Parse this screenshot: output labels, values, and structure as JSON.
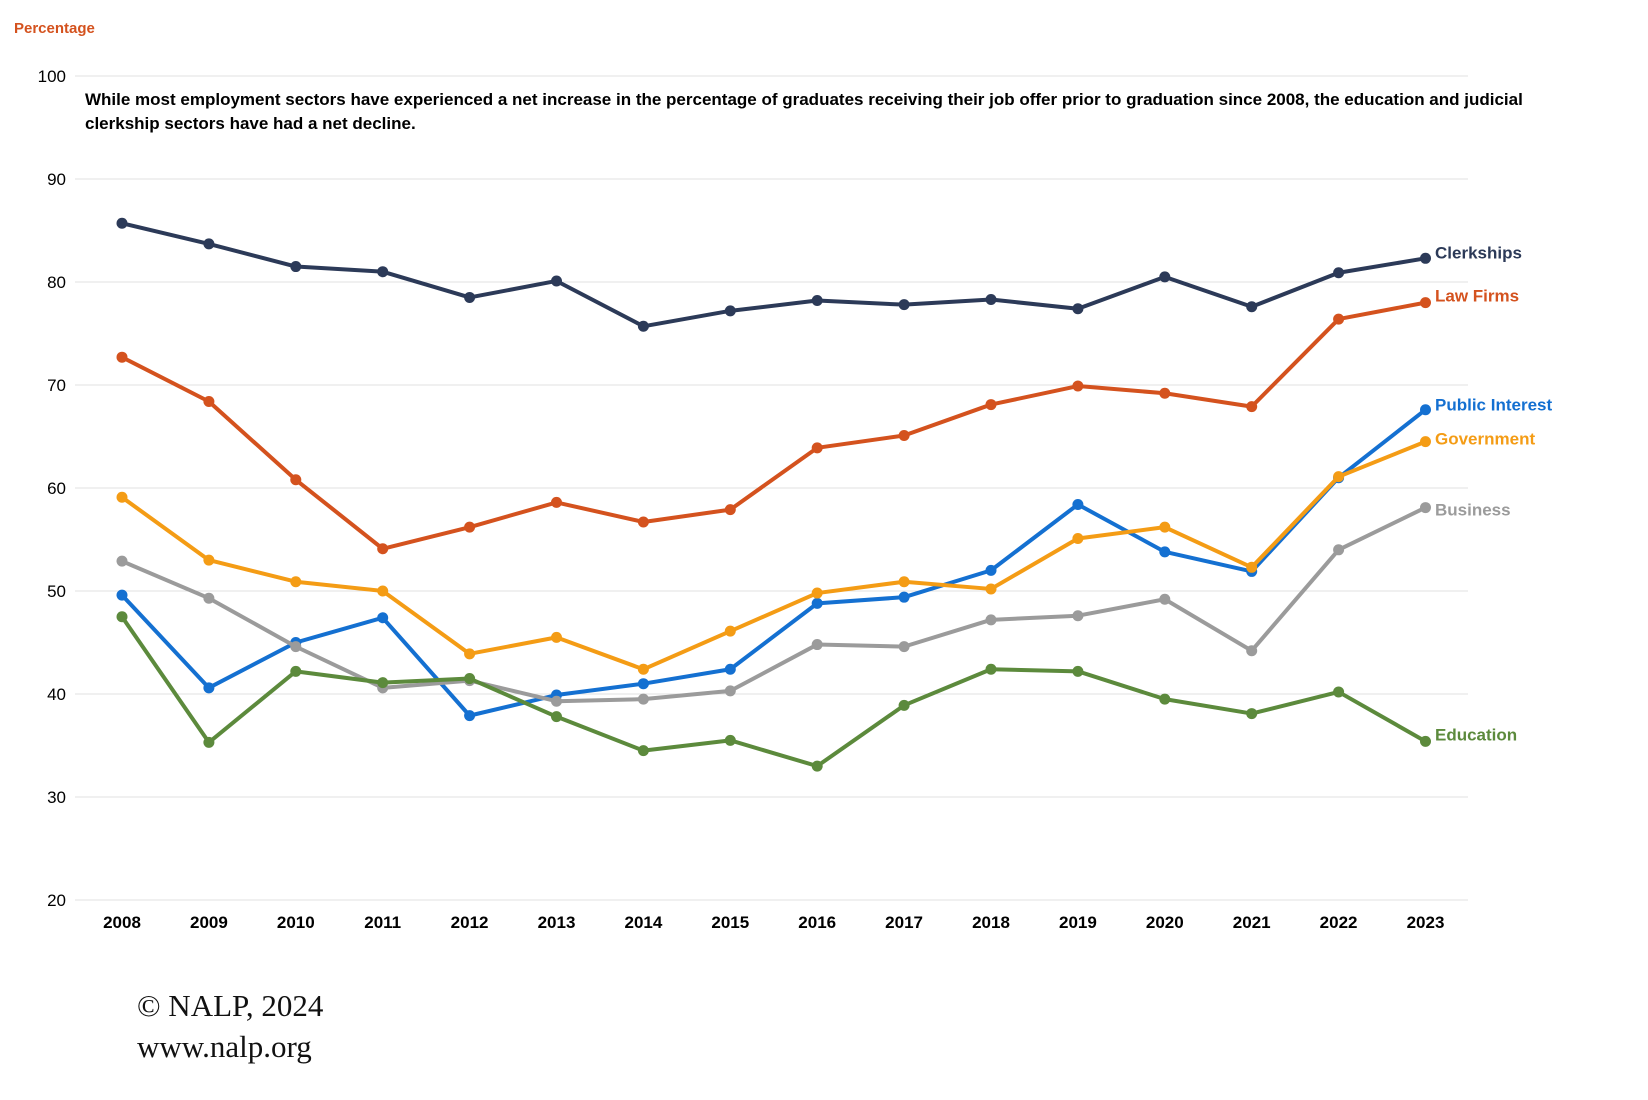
{
  "header": {
    "axis_title": "Percentage",
    "axis_title_color": "#d4521e",
    "annotation_lines": [
      "While most employment sectors have experienced a net increase in the percentage of graduates receiving their job offer prior to graduation since 2008, the education and judicial",
      "clerkship sectors have had a net decline."
    ]
  },
  "footer": {
    "copyright": "© NALP, 2024",
    "website": "www.nalp.org"
  },
  "colors": {
    "gridline": "#e0e0e0",
    "tick_label": "#000000"
  },
  "chart_data": {
    "type": "line",
    "x": [
      2008,
      2009,
      2010,
      2011,
      2012,
      2013,
      2014,
      2015,
      2016,
      2017,
      2018,
      2019,
      2020,
      2021,
      2022,
      2023
    ],
    "series": [
      {
        "name": "Clerkships",
        "color": "#2c3a58",
        "label_dy": -6,
        "values": [
          85.7,
          83.7,
          81.5,
          81.0,
          78.5,
          80.1,
          75.7,
          77.2,
          78.2,
          77.8,
          78.3,
          77.4,
          80.5,
          77.6,
          80.9,
          82.3
        ]
      },
      {
        "name": "Law Firms",
        "color": "#d4521e",
        "label_dy": -7,
        "values": [
          72.7,
          68.4,
          60.8,
          54.1,
          56.2,
          58.6,
          56.7,
          57.9,
          63.9,
          65.1,
          68.1,
          69.9,
          69.2,
          67.9,
          76.4,
          78.0
        ]
      },
      {
        "name": "Public Interest",
        "color": "#1470d1",
        "label_dy": -5,
        "values": [
          49.6,
          40.6,
          45.0,
          47.4,
          37.9,
          39.9,
          41.0,
          42.4,
          48.8,
          49.4,
          52.0,
          58.4,
          53.8,
          51.9,
          61.0,
          67.6
        ]
      },
      {
        "name": "Government",
        "color": "#f49c15",
        "label_dy": -3,
        "values": [
          59.1,
          53.0,
          50.9,
          50.0,
          43.9,
          45.5,
          42.4,
          46.1,
          49.8,
          50.9,
          50.2,
          55.1,
          56.2,
          52.3,
          61.1,
          64.5
        ]
      },
      {
        "name": "Business",
        "color": "#9b9b9b",
        "label_dy": 2,
        "values": [
          52.9,
          49.3,
          44.6,
          40.6,
          41.3,
          39.3,
          39.5,
          40.3,
          44.8,
          44.6,
          47.2,
          47.6,
          49.2,
          44.2,
          54.0,
          58.1
        ]
      },
      {
        "name": "Education",
        "color": "#5c8a3c",
        "label_dy": -7,
        "values": [
          47.5,
          35.3,
          42.2,
          41.1,
          41.5,
          37.8,
          34.5,
          35.5,
          33.0,
          38.9,
          42.4,
          42.2,
          39.5,
          38.1,
          40.2,
          35.4
        ]
      }
    ],
    "title": "",
    "xlabel": "",
    "ylabel": "Percentage",
    "ylim": [
      20,
      100
    ],
    "y_ticks": [
      100,
      90,
      80,
      70,
      60,
      50,
      40,
      30,
      20
    ],
    "grid": "horizontal-only",
    "legend_position": "end-of-line-labels"
  }
}
